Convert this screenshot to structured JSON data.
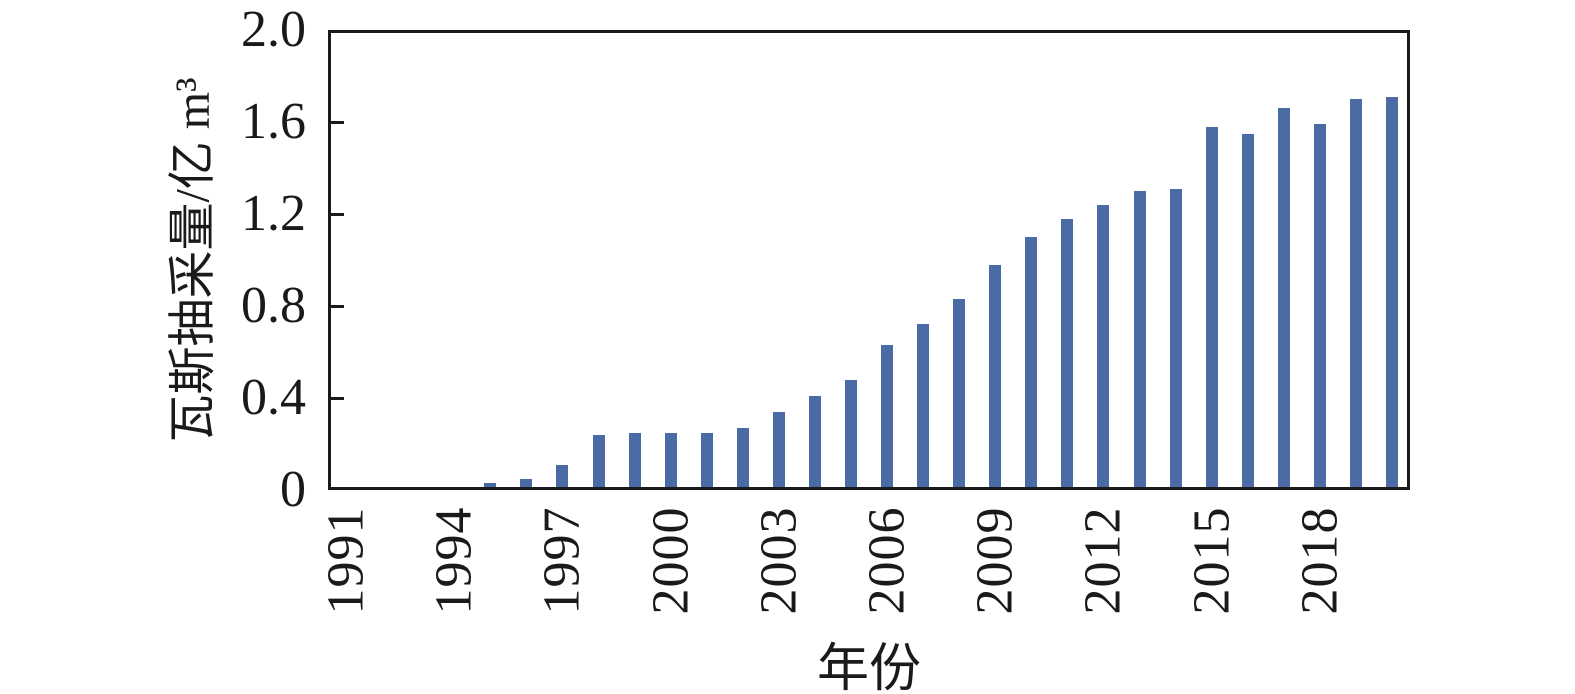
{
  "figure": {
    "background_color": "#ffffff",
    "axis_color": "#1a1a1a",
    "font_style": "serif"
  },
  "chart_data": {
    "type": "bar",
    "title": "",
    "xlabel": "年份",
    "ylabel": "瓦斯抽采量/亿 m³",
    "bar_color": "#4a6ba3",
    "grid": false,
    "legend": "none",
    "ylim": [
      0,
      2.0
    ],
    "x_range": [
      1990.5,
      2020.5
    ],
    "categories": [
      1991,
      1992,
      1993,
      1994,
      1995,
      1996,
      1997,
      1998,
      1999,
      2000,
      2001,
      2002,
      2003,
      2004,
      2005,
      2006,
      2007,
      2008,
      2009,
      2010,
      2011,
      2012,
      2013,
      2014,
      2015,
      2016,
      2017,
      2018,
      2019,
      2020
    ],
    "values": [
      0,
      0,
      0,
      0.01,
      0.03,
      0.05,
      0.11,
      0.24,
      0.25,
      0.25,
      0.25,
      0.27,
      0.34,
      0.41,
      0.48,
      0.63,
      0.72,
      0.83,
      0.98,
      1.1,
      1.18,
      1.24,
      1.3,
      1.31,
      1.58,
      1.55,
      1.66,
      1.59,
      1.7,
      1.71
    ],
    "yticks": {
      "values": [
        0,
        0.4,
        0.8,
        1.2,
        1.6,
        2.0
      ],
      "labels": [
        "0",
        "0.4",
        "0.8",
        "1.2",
        "1.6",
        "2.0"
      ]
    },
    "xticks": {
      "values": [
        1991,
        1994,
        1997,
        2000,
        2003,
        2006,
        2009,
        2012,
        2015,
        2018
      ],
      "labels": [
        "1991",
        "1994",
        "1997",
        "2000",
        "2003",
        "2006",
        "2009",
        "2012",
        "2015",
        "2018"
      ]
    }
  }
}
